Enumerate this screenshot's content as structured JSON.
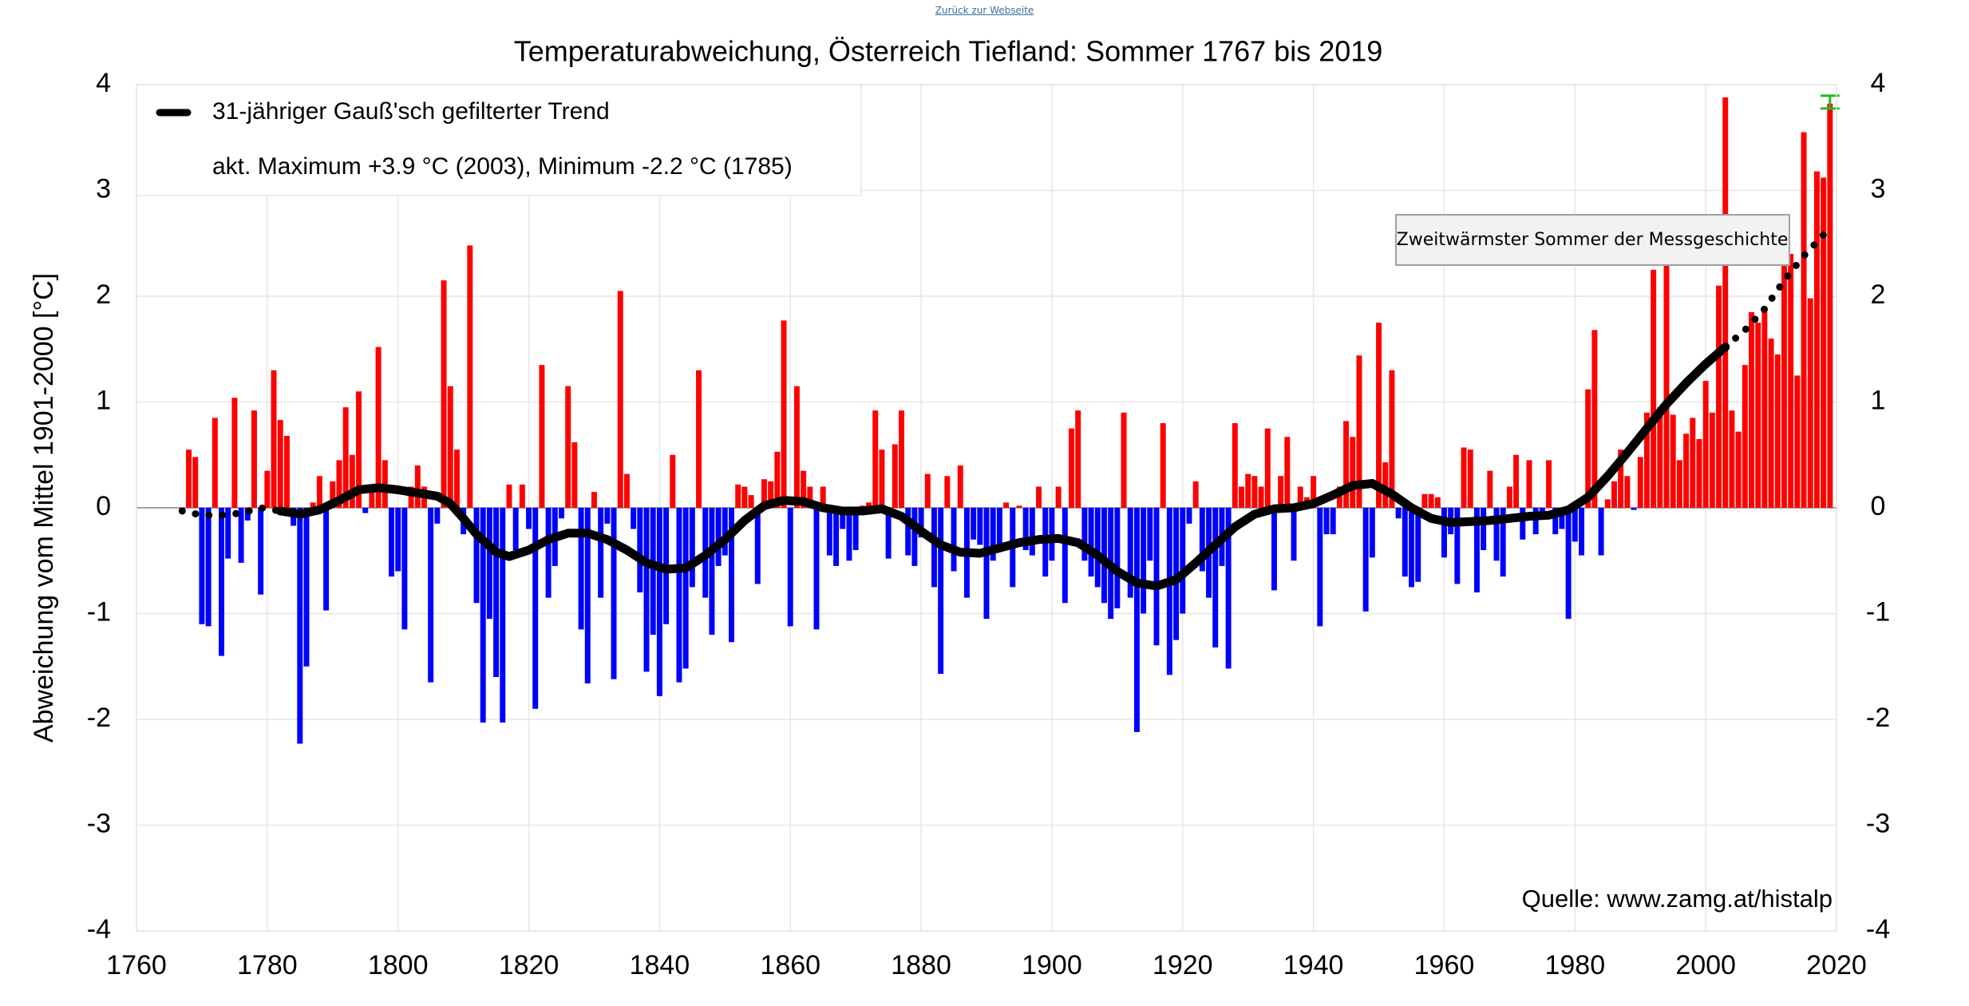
{
  "link": "Zurück zur Webseite",
  "chart_data": {
    "type": "bar",
    "title": "Temperaturabweichung, Österreich Tiefland: Sommer 1767 bis 2019",
    "y_label": "Abweichung vom Mittel 1901-2000 [°C]",
    "source": "Quelle: www.zamg.at/histalp",
    "note": "akt. Maximum +3.9 °C (2003), Minimum -2.2 °C (1785)",
    "tooltip": "Zweitwärmster Sommer der Messgeschichte",
    "positive_color": "#ff0000",
    "negative_color": "#0000ff",
    "highlight_color": "#22bb22",
    "grid": true,
    "legend": "top-left",
    "xlim": [
      1760,
      2020
    ],
    "xticks": [
      1760,
      1780,
      1800,
      1820,
      1840,
      1860,
      1880,
      1900,
      1920,
      1940,
      1960,
      1980,
      2000,
      2020
    ],
    "ylim": [
      -4,
      4
    ],
    "yticks": [
      -4,
      -3,
      -2,
      -1,
      0,
      1,
      2,
      3,
      4
    ],
    "y2lim": [
      -4,
      4
    ],
    "y2ticks": [
      -4,
      -3,
      -2,
      -1,
      0,
      1,
      2,
      3,
      4
    ],
    "x": [
      1767,
      1768,
      1769,
      1770,
      1771,
      1772,
      1773,
      1774,
      1775,
      1776,
      1777,
      1778,
      1779,
      1780,
      1781,
      1782,
      1783,
      1784,
      1785,
      1786,
      1787,
      1788,
      1789,
      1790,
      1791,
      1792,
      1793,
      1794,
      1795,
      1796,
      1797,
      1798,
      1799,
      1800,
      1801,
      1802,
      1803,
      1804,
      1805,
      1806,
      1807,
      1808,
      1809,
      1810,
      1811,
      1812,
      1813,
      1814,
      1815,
      1816,
      1817,
      1818,
      1819,
      1820,
      1821,
      1822,
      1823,
      1824,
      1825,
      1826,
      1827,
      1828,
      1829,
      1830,
      1831,
      1832,
      1833,
      1834,
      1835,
      1836,
      1837,
      1838,
      1839,
      1840,
      1841,
      1842,
      1843,
      1844,
      1845,
      1846,
      1847,
      1848,
      1849,
      1850,
      1851,
      1852,
      1853,
      1854,
      1855,
      1856,
      1857,
      1858,
      1859,
      1860,
      1861,
      1862,
      1863,
      1864,
      1865,
      1866,
      1867,
      1868,
      1869,
      1870,
      1871,
      1872,
      1873,
      1874,
      1875,
      1876,
      1877,
      1878,
      1879,
      1880,
      1881,
      1882,
      1883,
      1884,
      1885,
      1886,
      1887,
      1888,
      1889,
      1890,
      1891,
      1892,
      1893,
      1894,
      1895,
      1896,
      1897,
      1898,
      1899,
      1900,
      1901,
      1902,
      1903,
      1904,
      1905,
      1906,
      1907,
      1908,
      1909,
      1910,
      1911,
      1912,
      1913,
      1914,
      1915,
      1916,
      1917,
      1918,
      1919,
      1920,
      1921,
      1922,
      1923,
      1924,
      1925,
      1926,
      1927,
      1928,
      1929,
      1930,
      1931,
      1932,
      1933,
      1934,
      1935,
      1936,
      1937,
      1938,
      1939,
      1940,
      1941,
      1942,
      1943,
      1944,
      1945,
      1946,
      1947,
      1948,
      1949,
      1950,
      1951,
      1952,
      1953,
      1954,
      1955,
      1956,
      1957,
      1958,
      1959,
      1960,
      1961,
      1962,
      1963,
      1964,
      1965,
      1966,
      1967,
      1968,
      1969,
      1970,
      1971,
      1972,
      1973,
      1974,
      1975,
      1976,
      1977,
      1978,
      1979,
      1980,
      1981,
      1982,
      1983,
      1984,
      1985,
      1986,
      1987,
      1988,
      1989,
      1990,
      1991,
      1992,
      1993,
      1994,
      1995,
      1996,
      1997,
      1998,
      1999,
      2000,
      2001,
      2002,
      2003,
      2004,
      2005,
      2006,
      2007,
      2008,
      2009,
      2010,
      2011,
      2012,
      2013,
      2014,
      2015,
      2016,
      2017,
      2018,
      2019
    ],
    "values": [
      -0.05,
      0.55,
      0.48,
      -1.1,
      -1.12,
      0.85,
      -1.4,
      -0.48,
      1.04,
      -0.52,
      -0.12,
      0.92,
      -0.82,
      0.35,
      1.3,
      0.83,
      0.68,
      -0.17,
      -2.23,
      -1.5,
      0.05,
      0.3,
      -0.97,
      0.25,
      0.45,
      0.95,
      0.5,
      1.1,
      -0.05,
      0.2,
      1.52,
      0.45,
      -0.65,
      -0.6,
      -1.15,
      0.2,
      0.4,
      0.2,
      -1.65,
      -0.15,
      2.15,
      1.15,
      0.55,
      -0.25,
      2.48,
      -0.9,
      -2.03,
      -1.05,
      -1.6,
      -2.03,
      0.22,
      -0.4,
      0.22,
      -0.2,
      -1.9,
      1.35,
      -0.85,
      -0.55,
      -0.1,
      1.15,
      0.62,
      -1.15,
      -1.66,
      0.15,
      -0.85,
      -0.15,
      -1.62,
      2.05,
      0.32,
      -0.2,
      -0.8,
      -1.55,
      -1.2,
      -1.78,
      -1.1,
      0.5,
      -1.65,
      -1.52,
      -0.75,
      1.3,
      -0.85,
      -1.2,
      -0.55,
      -0.45,
      -1.27,
      0.22,
      0.2,
      0.12,
      -0.72,
      0.27,
      0.25,
      0.53,
      1.77,
      -1.12,
      1.15,
      0.35,
      0.2,
      -1.15,
      0.2,
      -0.45,
      -0.55,
      -0.2,
      -0.5,
      -0.4,
      0.02,
      0.05,
      0.92,
      0.55,
      -0.48,
      0.6,
      0.92,
      -0.45,
      -0.55,
      -0.28,
      0.32,
      -0.75,
      -1.57,
      0.3,
      -0.6,
      0.4,
      -0.85,
      -0.3,
      -0.35,
      -1.05,
      -0.5,
      -0.35,
      0.05,
      -0.75,
      0.02,
      -0.4,
      -0.45,
      0.2,
      -0.65,
      -0.5,
      0.2,
      -0.9,
      0.75,
      0.92,
      -0.5,
      -0.65,
      -0.75,
      -0.9,
      -1.05,
      -0.95,
      0.9,
      -0.85,
      -2.12,
      -1.0,
      -0.5,
      -1.3,
      0.8,
      -1.58,
      -1.25,
      -1.0,
      -0.15,
      0.25,
      -0.6,
      -0.85,
      -1.32,
      -0.55,
      -1.52,
      0.8,
      0.2,
      0.32,
      0.3,
      0.2,
      0.75,
      -0.78,
      0.3,
      0.67,
      -0.5,
      0.2,
      0.1,
      0.3,
      -1.12,
      -0.25,
      -0.25,
      0.2,
      0.82,
      0.67,
      1.44,
      -0.98,
      -0.47,
      1.75,
      0.43,
      1.3,
      -0.1,
      -0.65,
      -0.75,
      -0.7,
      0.13,
      0.13,
      0.1,
      -0.47,
      -0.25,
      -0.72,
      0.57,
      0.55,
      -0.8,
      -0.4,
      0.35,
      -0.5,
      -0.65,
      0.2,
      0.5,
      -0.3,
      0.45,
      -0.25,
      -0.05,
      0.45,
      -0.25,
      -0.2,
      -1.05,
      -0.32,
      -0.45,
      1.12,
      1.68,
      -0.45,
      0.08,
      0.25,
      0.55,
      0.3,
      -0.02,
      0.48,
      0.9,
      2.25,
      0.95,
      2.3,
      0.88,
      0.45,
      0.7,
      0.85,
      0.65,
      1.2,
      0.9,
      2.1,
      3.88,
      0.92,
      0.72,
      1.35,
      1.85,
      1.75,
      1.9,
      1.6,
      1.45,
      2.3,
      2.4,
      1.25,
      3.55,
      1.98,
      3.18,
      3.12,
      3.82
    ],
    "trend": {
      "name": "31-jähriger Gauß'sch gefilterter Trend",
      "color": "#000000",
      "x": [
        1767,
        1770,
        1773,
        1776,
        1779,
        1782,
        1785,
        1788,
        1791,
        1794,
        1797,
        1800,
        1803,
        1806,
        1808,
        1810,
        1812,
        1815,
        1817,
        1820,
        1823,
        1826,
        1829,
        1832,
        1835,
        1838,
        1841,
        1844,
        1847,
        1850,
        1853,
        1856,
        1859,
        1862,
        1865,
        1868,
        1871,
        1874,
        1877,
        1880,
        1883,
        1886,
        1889,
        1892,
        1895,
        1898,
        1901,
        1904,
        1907,
        1910,
        1913,
        1916,
        1919,
        1922,
        1925,
        1928,
        1931,
        1934,
        1937,
        1940,
        1943,
        1946,
        1949,
        1952,
        1955,
        1958,
        1961,
        1964,
        1967,
        1970,
        1973,
        1976,
        1979,
        1982,
        1985,
        1988,
        1991,
        1994,
        1997,
        2000,
        2003,
        2006,
        2009,
        2012,
        2015,
        2018
      ],
      "values": [
        -0.03,
        -0.07,
        -0.07,
        -0.05,
        0.0,
        -0.03,
        -0.06,
        -0.02,
        0.07,
        0.17,
        0.19,
        0.17,
        0.14,
        0.11,
        0.04,
        -0.1,
        -0.25,
        -0.42,
        -0.46,
        -0.4,
        -0.3,
        -0.24,
        -0.24,
        -0.3,
        -0.4,
        -0.52,
        -0.58,
        -0.57,
        -0.45,
        -0.3,
        -0.12,
        0.02,
        0.07,
        0.06,
        0.0,
        -0.03,
        -0.03,
        -0.01,
        -0.08,
        -0.22,
        -0.35,
        -0.42,
        -0.43,
        -0.38,
        -0.33,
        -0.3,
        -0.29,
        -0.33,
        -0.45,
        -0.6,
        -0.71,
        -0.74,
        -0.68,
        -0.52,
        -0.35,
        -0.18,
        -0.06,
        -0.01,
        0.0,
        0.04,
        0.12,
        0.21,
        0.23,
        0.13,
        0.0,
        -0.1,
        -0.14,
        -0.13,
        -0.12,
        -0.1,
        -0.08,
        -0.07,
        -0.02,
        0.1,
        0.3,
        0.52,
        0.75,
        0.98,
        1.18,
        1.36,
        1.52,
        1.68,
        1.88,
        2.15,
        2.38,
        2.58
      ]
    }
  }
}
